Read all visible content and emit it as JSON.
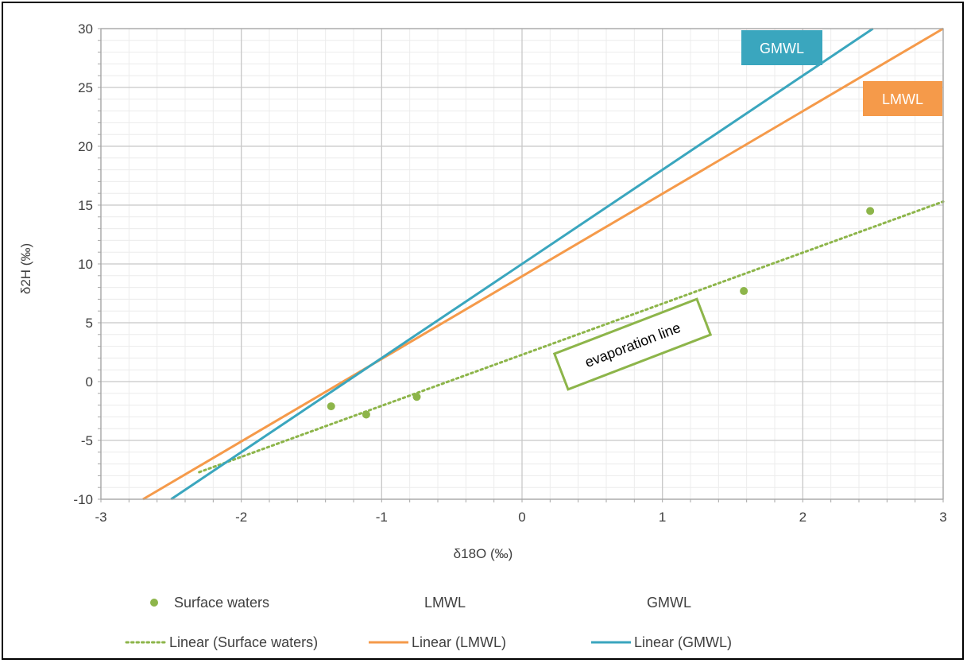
{
  "chart_data": {
    "type": "scatter",
    "xlabel": "δ18O (‰)",
    "ylabel": "δ2H (‰)",
    "xlim": [
      -3,
      3
    ],
    "ylim": [
      -10,
      30
    ],
    "x_ticks": [
      "-3",
      "-2",
      "-1",
      "0",
      "1",
      "2",
      "3"
    ],
    "y_ticks": [
      "-10",
      "-5",
      "0",
      "5",
      "10",
      "15",
      "20",
      "25",
      "30"
    ],
    "grid": "major and minor",
    "legend_position": "bottom",
    "series": [
      {
        "name": "Surface waters",
        "kind": "points",
        "color": "#8db54a",
        "points": [
          {
            "x": -1.36,
            "y": -2.1
          },
          {
            "x": -1.11,
            "y": -2.8
          },
          {
            "x": -0.75,
            "y": -1.3
          },
          {
            "x": 1.58,
            "y": 7.7
          },
          {
            "x": 2.48,
            "y": 14.5
          }
        ]
      },
      {
        "name": "Linear (Surface waters)",
        "kind": "line",
        "style": "dotted",
        "color": "#8db54a",
        "points": [
          {
            "x": -2.3,
            "y": -7.7
          },
          {
            "x": 3.0,
            "y": 15.3
          }
        ]
      },
      {
        "name": "Linear (LMWL)",
        "kind": "line",
        "color": "#f59a4a",
        "points": [
          {
            "x": -2.7,
            "y": -10.0
          },
          {
            "x": 3.0,
            "y": 30.0
          }
        ]
      },
      {
        "name": "Linear (GMWL)",
        "kind": "line",
        "color": "#3aa6be",
        "points": [
          {
            "x": -2.5,
            "y": -10.0
          },
          {
            "x": 2.5,
            "y": 30.0
          }
        ]
      }
    ],
    "annotations": [
      {
        "text": "GMWL",
        "color": "#3aa6be",
        "style": "filled box"
      },
      {
        "text": "LMWL",
        "color": "#f59a4a",
        "style": "filled box"
      },
      {
        "text": "evaporation line",
        "color": "#8db54a",
        "style": "outlined rotated box"
      }
    ],
    "legend": [
      {
        "label": "Surface waters",
        "symbol": "dot",
        "color": "#8db54a"
      },
      {
        "label": "LMWL",
        "symbol": "none",
        "color": "#f59a4a"
      },
      {
        "label": "GMWL",
        "symbol": "none",
        "color": "#3aa6be"
      },
      {
        "label": "Linear (Surface waters)",
        "symbol": "dotted-line",
        "color": "#8db54a"
      },
      {
        "label": "Linear (LMWL)",
        "symbol": "line",
        "color": "#f59a4a"
      },
      {
        "label": "Linear (GMWL)",
        "symbol": "line",
        "color": "#3aa6be"
      }
    ]
  }
}
